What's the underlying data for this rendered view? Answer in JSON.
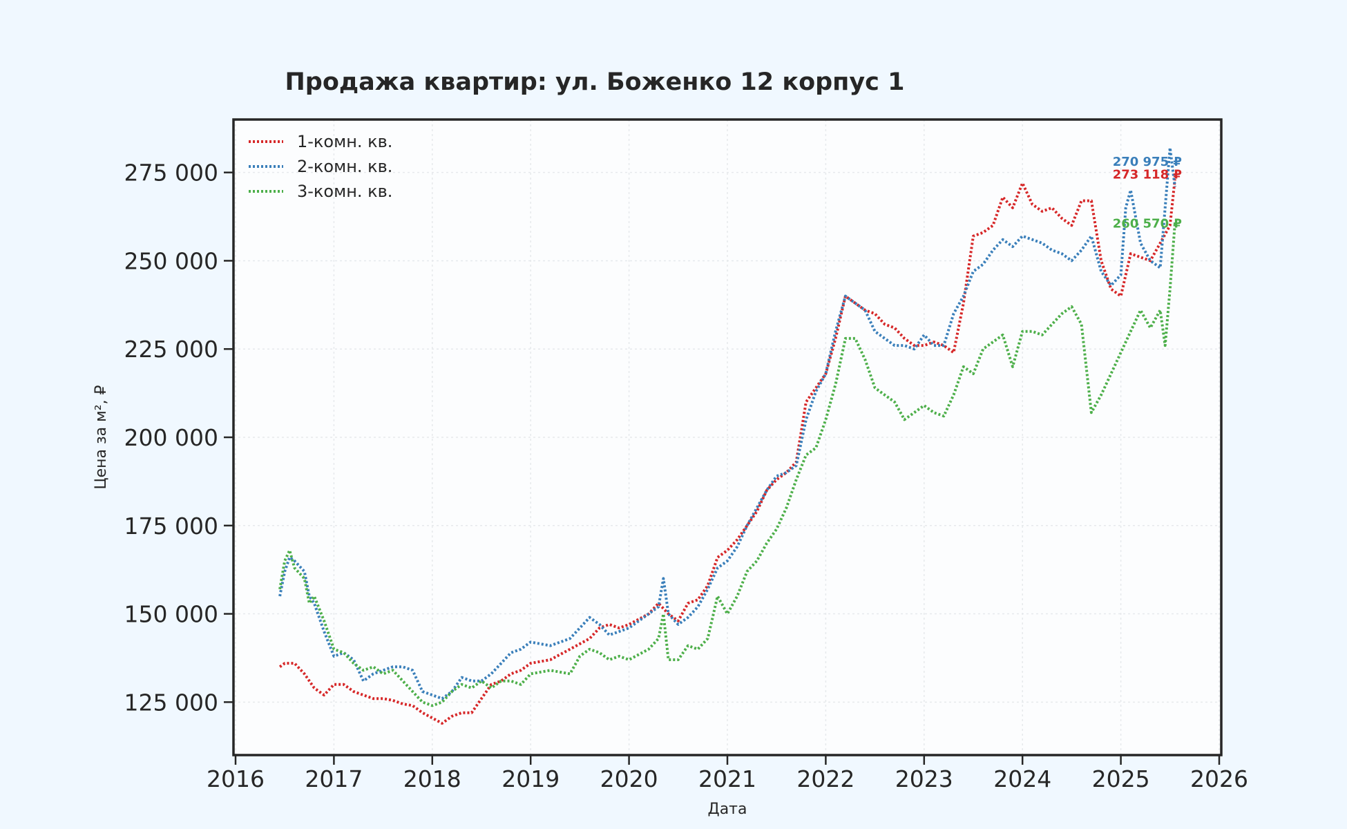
{
  "chart_data": {
    "type": "line",
    "title": "Продажа квартир: ул. Боженко 12 корпус 1",
    "xlabel": "Дата",
    "ylabel": "Цена за м², ₽",
    "xlim": [
      2016,
      2026
    ],
    "ylim": [
      110000,
      290000
    ],
    "x_ticks": [
      2016,
      2017,
      2018,
      2019,
      2020,
      2021,
      2022,
      2023,
      2024,
      2025,
      2026
    ],
    "x_tick_labels": [
      "2016",
      "2017",
      "2018",
      "2019",
      "2020",
      "2021",
      "2022",
      "2023",
      "2024",
      "2025",
      "2026"
    ],
    "y_ticks": [
      125000,
      150000,
      175000,
      200000,
      225000,
      250000,
      275000
    ],
    "y_tick_labels": [
      "125 000",
      "150 000",
      "175 000",
      "200 000",
      "225 000",
      "250 000",
      "275 000"
    ],
    "grid": true,
    "legend_position": "top-left",
    "line_style": "dotted",
    "series": [
      {
        "name": "1-комн. кв.",
        "color": "#d62728",
        "end_label": "273 118 ₽",
        "points": [
          [
            2016.45,
            135000
          ],
          [
            2016.5,
            136000
          ],
          [
            2016.6,
            136000
          ],
          [
            2016.7,
            133000
          ],
          [
            2016.8,
            129000
          ],
          [
            2016.9,
            127000
          ],
          [
            2017.0,
            130000
          ],
          [
            2017.1,
            130000
          ],
          [
            2017.2,
            128000
          ],
          [
            2017.3,
            127000
          ],
          [
            2017.4,
            126000
          ],
          [
            2017.5,
            126000
          ],
          [
            2017.6,
            125500
          ],
          [
            2017.7,
            124500
          ],
          [
            2017.8,
            124000
          ],
          [
            2017.9,
            122000
          ],
          [
            2018.0,
            120500
          ],
          [
            2018.1,
            119000
          ],
          [
            2018.2,
            121000
          ],
          [
            2018.3,
            122000
          ],
          [
            2018.4,
            122000
          ],
          [
            2018.5,
            126000
          ],
          [
            2018.6,
            130000
          ],
          [
            2018.7,
            131000
          ],
          [
            2018.8,
            133000
          ],
          [
            2018.9,
            134000
          ],
          [
            2019.0,
            136000
          ],
          [
            2019.2,
            137000
          ],
          [
            2019.4,
            140000
          ],
          [
            2019.6,
            143000
          ],
          [
            2019.7,
            146000
          ],
          [
            2019.8,
            147000
          ],
          [
            2019.9,
            146000
          ],
          [
            2020.0,
            147000
          ],
          [
            2020.2,
            150000
          ],
          [
            2020.3,
            153000
          ],
          [
            2020.4,
            150000
          ],
          [
            2020.5,
            148000
          ],
          [
            2020.6,
            153000
          ],
          [
            2020.7,
            154000
          ],
          [
            2020.8,
            158000
          ],
          [
            2020.9,
            166000
          ],
          [
            2021.0,
            168000
          ],
          [
            2021.1,
            171000
          ],
          [
            2021.2,
            175000
          ],
          [
            2021.3,
            179000
          ],
          [
            2021.4,
            185000
          ],
          [
            2021.5,
            188000
          ],
          [
            2021.6,
            190000
          ],
          [
            2021.7,
            193000
          ],
          [
            2021.8,
            210000
          ],
          [
            2021.9,
            214000
          ],
          [
            2022.0,
            218000
          ],
          [
            2022.1,
            228000
          ],
          [
            2022.2,
            240000
          ],
          [
            2022.3,
            238000
          ],
          [
            2022.4,
            236000
          ],
          [
            2022.5,
            235000
          ],
          [
            2022.6,
            232000
          ],
          [
            2022.7,
            231000
          ],
          [
            2022.8,
            228000
          ],
          [
            2022.9,
            226000
          ],
          [
            2023.0,
            226000
          ],
          [
            2023.1,
            227000
          ],
          [
            2023.2,
            226000
          ],
          [
            2023.3,
            224000
          ],
          [
            2023.4,
            238000
          ],
          [
            2023.5,
            257000
          ],
          [
            2023.6,
            258000
          ],
          [
            2023.7,
            260000
          ],
          [
            2023.8,
            268000
          ],
          [
            2023.9,
            265000
          ],
          [
            2024.0,
            272000
          ],
          [
            2024.1,
            266000
          ],
          [
            2024.2,
            264000
          ],
          [
            2024.3,
            265000
          ],
          [
            2024.4,
            262000
          ],
          [
            2024.5,
            260000
          ],
          [
            2024.6,
            267000
          ],
          [
            2024.7,
            267000
          ],
          [
            2024.8,
            250000
          ],
          [
            2024.9,
            242000
          ],
          [
            2025.0,
            240000
          ],
          [
            2025.1,
            252000
          ],
          [
            2025.2,
            251000
          ],
          [
            2025.3,
            250000
          ],
          [
            2025.4,
            255000
          ],
          [
            2025.5,
            260000
          ],
          [
            2025.55,
            273118
          ]
        ]
      },
      {
        "name": "2-комн. кв.",
        "color": "#3a7fba",
        "end_label": "270 975 ₽",
        "points": [
          [
            2016.45,
            155000
          ],
          [
            2016.5,
            162000
          ],
          [
            2016.55,
            166000
          ],
          [
            2016.6,
            165000
          ],
          [
            2016.7,
            162000
          ],
          [
            2016.75,
            155000
          ],
          [
            2016.8,
            153000
          ],
          [
            2016.9,
            145000
          ],
          [
            2017.0,
            138000
          ],
          [
            2017.1,
            139000
          ],
          [
            2017.2,
            137000
          ],
          [
            2017.3,
            131000
          ],
          [
            2017.4,
            133000
          ],
          [
            2017.5,
            134000
          ],
          [
            2017.6,
            135000
          ],
          [
            2017.7,
            135000
          ],
          [
            2017.8,
            134000
          ],
          [
            2017.9,
            128000
          ],
          [
            2018.0,
            127000
          ],
          [
            2018.1,
            126000
          ],
          [
            2018.2,
            128000
          ],
          [
            2018.3,
            132000
          ],
          [
            2018.4,
            131000
          ],
          [
            2018.5,
            131000
          ],
          [
            2018.6,
            133000
          ],
          [
            2018.7,
            136000
          ],
          [
            2018.8,
            139000
          ],
          [
            2018.9,
            140000
          ],
          [
            2019.0,
            142000
          ],
          [
            2019.2,
            141000
          ],
          [
            2019.4,
            143000
          ],
          [
            2019.5,
            146000
          ],
          [
            2019.6,
            149000
          ],
          [
            2019.7,
            147000
          ],
          [
            2019.8,
            144000
          ],
          [
            2019.9,
            145000
          ],
          [
            2020.0,
            146000
          ],
          [
            2020.2,
            150000
          ],
          [
            2020.3,
            152000
          ],
          [
            2020.35,
            160000
          ],
          [
            2020.4,
            150000
          ],
          [
            2020.5,
            147000
          ],
          [
            2020.6,
            149000
          ],
          [
            2020.7,
            152000
          ],
          [
            2020.8,
            157000
          ],
          [
            2020.9,
            163000
          ],
          [
            2021.0,
            165000
          ],
          [
            2021.1,
            169000
          ],
          [
            2021.2,
            175000
          ],
          [
            2021.3,
            180000
          ],
          [
            2021.4,
            185000
          ],
          [
            2021.5,
            189000
          ],
          [
            2021.6,
            190000
          ],
          [
            2021.7,
            192000
          ],
          [
            2021.8,
            205000
          ],
          [
            2021.9,
            213000
          ],
          [
            2022.0,
            218000
          ],
          [
            2022.1,
            230000
          ],
          [
            2022.2,
            240000
          ],
          [
            2022.3,
            238000
          ],
          [
            2022.4,
            236000
          ],
          [
            2022.5,
            230000
          ],
          [
            2022.6,
            228000
          ],
          [
            2022.7,
            226000
          ],
          [
            2022.8,
            226000
          ],
          [
            2022.9,
            225000
          ],
          [
            2023.0,
            229000
          ],
          [
            2023.1,
            226000
          ],
          [
            2023.2,
            226000
          ],
          [
            2023.3,
            235000
          ],
          [
            2023.4,
            240000
          ],
          [
            2023.5,
            247000
          ],
          [
            2023.6,
            249000
          ],
          [
            2023.7,
            253000
          ],
          [
            2023.8,
            256000
          ],
          [
            2023.9,
            254000
          ],
          [
            2024.0,
            257000
          ],
          [
            2024.1,
            256000
          ],
          [
            2024.2,
            255000
          ],
          [
            2024.3,
            253000
          ],
          [
            2024.4,
            252000
          ],
          [
            2024.5,
            250000
          ],
          [
            2024.6,
            253000
          ],
          [
            2024.7,
            257000
          ],
          [
            2024.8,
            247000
          ],
          [
            2024.9,
            243000
          ],
          [
            2025.0,
            246000
          ],
          [
            2025.05,
            265000
          ],
          [
            2025.1,
            270000
          ],
          [
            2025.2,
            255000
          ],
          [
            2025.3,
            250000
          ],
          [
            2025.4,
            248000
          ],
          [
            2025.5,
            282000
          ],
          [
            2025.55,
            270975
          ]
        ]
      },
      {
        "name": "3-комн. кв.",
        "color": "#4daf4a",
        "end_label": "260 570 ₽",
        "points": [
          [
            2016.45,
            157000
          ],
          [
            2016.5,
            165000
          ],
          [
            2016.55,
            168000
          ],
          [
            2016.6,
            163000
          ],
          [
            2016.7,
            160000
          ],
          [
            2016.75,
            153000
          ],
          [
            2016.8,
            155000
          ],
          [
            2016.9,
            148000
          ],
          [
            2017.0,
            140000
          ],
          [
            2017.1,
            139000
          ],
          [
            2017.2,
            136000
          ],
          [
            2017.3,
            134000
          ],
          [
            2017.4,
            135000
          ],
          [
            2017.5,
            133000
          ],
          [
            2017.6,
            134000
          ],
          [
            2017.7,
            131000
          ],
          [
            2017.8,
            128000
          ],
          [
            2017.9,
            125000
          ],
          [
            2018.0,
            124000
          ],
          [
            2018.1,
            125000
          ],
          [
            2018.2,
            128000
          ],
          [
            2018.3,
            130000
          ],
          [
            2018.4,
            129000
          ],
          [
            2018.5,
            131000
          ],
          [
            2018.6,
            129000
          ],
          [
            2018.7,
            131000
          ],
          [
            2018.8,
            131000
          ],
          [
            2018.9,
            130000
          ],
          [
            2019.0,
            133000
          ],
          [
            2019.2,
            134000
          ],
          [
            2019.4,
            133000
          ],
          [
            2019.5,
            138000
          ],
          [
            2019.6,
            140000
          ],
          [
            2019.7,
            139000
          ],
          [
            2019.8,
            137000
          ],
          [
            2019.9,
            138000
          ],
          [
            2020.0,
            137000
          ],
          [
            2020.2,
            140000
          ],
          [
            2020.3,
            143000
          ],
          [
            2020.35,
            150000
          ],
          [
            2020.4,
            137000
          ],
          [
            2020.5,
            137000
          ],
          [
            2020.6,
            141000
          ],
          [
            2020.7,
            140000
          ],
          [
            2020.8,
            143000
          ],
          [
            2020.9,
            155000
          ],
          [
            2021.0,
            150000
          ],
          [
            2021.1,
            155000
          ],
          [
            2021.2,
            162000
          ],
          [
            2021.3,
            165000
          ],
          [
            2021.4,
            170000
          ],
          [
            2021.5,
            174000
          ],
          [
            2021.6,
            180000
          ],
          [
            2021.7,
            188000
          ],
          [
            2021.8,
            195000
          ],
          [
            2021.9,
            197000
          ],
          [
            2022.0,
            205000
          ],
          [
            2022.1,
            215000
          ],
          [
            2022.2,
            228000
          ],
          [
            2022.3,
            228000
          ],
          [
            2022.4,
            222000
          ],
          [
            2022.5,
            214000
          ],
          [
            2022.6,
            212000
          ],
          [
            2022.7,
            210000
          ],
          [
            2022.8,
            205000
          ],
          [
            2022.9,
            207000
          ],
          [
            2023.0,
            209000
          ],
          [
            2023.1,
            207000
          ],
          [
            2023.2,
            206000
          ],
          [
            2023.3,
            212000
          ],
          [
            2023.4,
            220000
          ],
          [
            2023.5,
            218000
          ],
          [
            2023.6,
            225000
          ],
          [
            2023.7,
            227000
          ],
          [
            2023.8,
            229000
          ],
          [
            2023.9,
            220000
          ],
          [
            2024.0,
            230000
          ],
          [
            2024.1,
            230000
          ],
          [
            2024.2,
            229000
          ],
          [
            2024.3,
            232000
          ],
          [
            2024.4,
            235000
          ],
          [
            2024.5,
            237000
          ],
          [
            2024.6,
            232000
          ],
          [
            2024.7,
            207000
          ],
          [
            2024.8,
            212000
          ],
          [
            2024.9,
            218000
          ],
          [
            2025.0,
            224000
          ],
          [
            2025.1,
            230000
          ],
          [
            2025.2,
            236000
          ],
          [
            2025.3,
            231000
          ],
          [
            2025.4,
            236000
          ],
          [
            2025.45,
            226000
          ],
          [
            2025.5,
            242000
          ],
          [
            2025.55,
            260570
          ]
        ]
      }
    ]
  }
}
